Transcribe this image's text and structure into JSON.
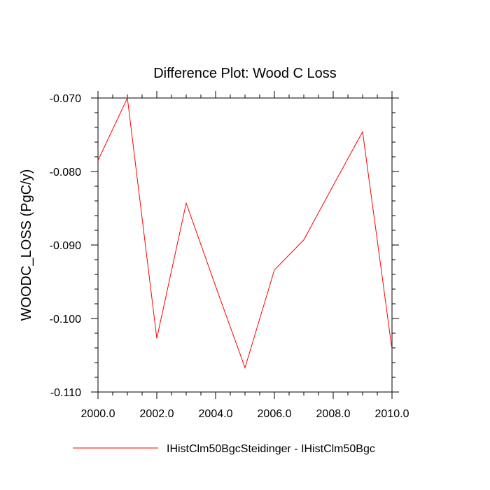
{
  "chart_data": {
    "type": "line",
    "title": "Difference Plot: Wood C Loss",
    "xlabel": "",
    "ylabel": "WOODC_LOSS  (PgC/y)",
    "xlim": [
      2000,
      2010
    ],
    "ylim": [
      -0.11,
      -0.07
    ],
    "xticks": [
      2000,
      2002,
      2004,
      2006,
      2008,
      2010
    ],
    "xtick_labels": [
      "2000.0",
      "2002.0",
      "2004.0",
      "2006.0",
      "2008.0",
      "2010.0"
    ],
    "yticks": [
      -0.07,
      -0.08,
      -0.09,
      -0.1,
      -0.11
    ],
    "ytick_labels": [
      "-0.070",
      "-0.080",
      "-0.090",
      "-0.100",
      "-0.110"
    ],
    "grid": false,
    "legend_position": "bottom",
    "series": [
      {
        "name": "IHistClm50BgcSteidinger - IHistClm50Bgc",
        "color": "#ff0000",
        "x": [
          2000,
          2001,
          2002,
          2003,
          2004,
          2005,
          2006,
          2007,
          2008,
          2009,
          2010
        ],
        "y": [
          -0.0785,
          -0.07,
          -0.1027,
          -0.0843,
          -0.0956,
          -0.1067,
          -0.0934,
          -0.0893,
          -0.0819,
          -0.0746,
          -0.1042
        ]
      }
    ]
  }
}
